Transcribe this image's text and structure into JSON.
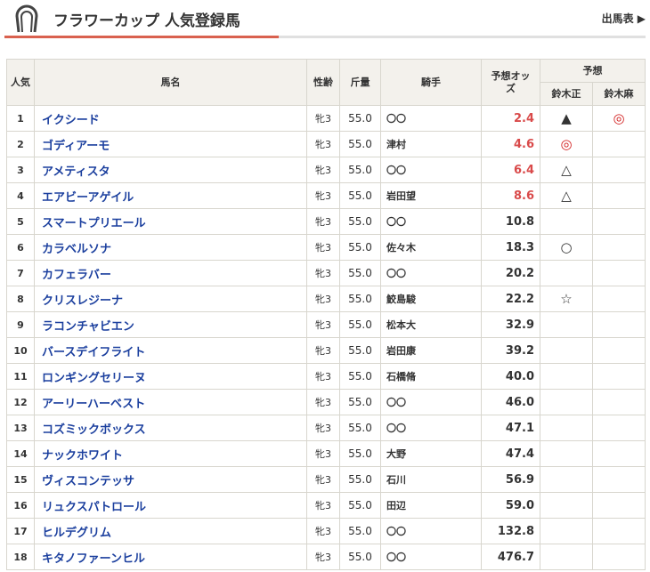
{
  "header": {
    "title": "フラワーカップ 人気登録馬",
    "link": "出馬表 ▶",
    "accent": "#d9614f"
  },
  "table": {
    "columns": {
      "rank": "人気",
      "name": "馬名",
      "sex_age": "性齢",
      "weight": "斤量",
      "jockey": "騎手",
      "odds": "予想オッズ",
      "forecast": "予想",
      "forecaster1": "鈴木正",
      "forecaster2": "鈴木麻"
    },
    "rows": [
      {
        "rank": "1",
        "name": "イクシード",
        "sex": "牝3",
        "wt": "55.0",
        "jockey": "〇〇",
        "odds": "2.4",
        "hot": true,
        "m1": "▲",
        "m2": "◎"
      },
      {
        "rank": "2",
        "name": "ゴディアーモ",
        "sex": "牝3",
        "wt": "55.0",
        "jockey": "津村",
        "odds": "4.6",
        "hot": true,
        "m1": "◎",
        "m2": ""
      },
      {
        "rank": "3",
        "name": "アメティスタ",
        "sex": "牝3",
        "wt": "55.0",
        "jockey": "〇〇",
        "odds": "6.4",
        "hot": true,
        "m1": "△",
        "m2": ""
      },
      {
        "rank": "4",
        "name": "エアビーアゲイル",
        "sex": "牝3",
        "wt": "55.0",
        "jockey": "岩田望",
        "odds": "8.6",
        "hot": true,
        "m1": "△",
        "m2": ""
      },
      {
        "rank": "5",
        "name": "スマートプリエール",
        "sex": "牝3",
        "wt": "55.0",
        "jockey": "〇〇",
        "odds": "10.8",
        "hot": false,
        "m1": "",
        "m2": ""
      },
      {
        "rank": "6",
        "name": "カラベルソナ",
        "sex": "牝3",
        "wt": "55.0",
        "jockey": "佐々木",
        "odds": "18.3",
        "hot": false,
        "m1": "○",
        "m2": ""
      },
      {
        "rank": "7",
        "name": "カフェラバー",
        "sex": "牝3",
        "wt": "55.0",
        "jockey": "〇〇",
        "odds": "20.2",
        "hot": false,
        "m1": "",
        "m2": ""
      },
      {
        "rank": "8",
        "name": "クリスレジーナ",
        "sex": "牝3",
        "wt": "55.0",
        "jockey": "鮫島駿",
        "odds": "22.2",
        "hot": false,
        "m1": "☆",
        "m2": ""
      },
      {
        "rank": "9",
        "name": "ラコンチャビエン",
        "sex": "牝3",
        "wt": "55.0",
        "jockey": "松本大",
        "odds": "32.9",
        "hot": false,
        "m1": "",
        "m2": ""
      },
      {
        "rank": "10",
        "name": "バースデイフライト",
        "sex": "牝3",
        "wt": "55.0",
        "jockey": "岩田康",
        "odds": "39.2",
        "hot": false,
        "m1": "",
        "m2": ""
      },
      {
        "rank": "11",
        "name": "ロンギングセリーヌ",
        "sex": "牝3",
        "wt": "55.0",
        "jockey": "石橋脩",
        "odds": "40.0",
        "hot": false,
        "m1": "",
        "m2": ""
      },
      {
        "rank": "12",
        "name": "アーリーハーベスト",
        "sex": "牝3",
        "wt": "55.0",
        "jockey": "〇〇",
        "odds": "46.0",
        "hot": false,
        "m1": "",
        "m2": ""
      },
      {
        "rank": "13",
        "name": "コズミックボックス",
        "sex": "牝3",
        "wt": "55.0",
        "jockey": "〇〇",
        "odds": "47.1",
        "hot": false,
        "m1": "",
        "m2": ""
      },
      {
        "rank": "14",
        "name": "ナックホワイト",
        "sex": "牝3",
        "wt": "55.0",
        "jockey": "大野",
        "odds": "47.4",
        "hot": false,
        "m1": "",
        "m2": ""
      },
      {
        "rank": "15",
        "name": "ヴィスコンテッサ",
        "sex": "牝3",
        "wt": "55.0",
        "jockey": "石川",
        "odds": "56.9",
        "hot": false,
        "m1": "",
        "m2": ""
      },
      {
        "rank": "16",
        "name": "リュクスパトロール",
        "sex": "牝3",
        "wt": "55.0",
        "jockey": "田辺",
        "odds": "59.0",
        "hot": false,
        "m1": "",
        "m2": ""
      },
      {
        "rank": "17",
        "name": "ヒルデグリム",
        "sex": "牝3",
        "wt": "55.0",
        "jockey": "〇〇",
        "odds": "132.8",
        "hot": false,
        "m1": "",
        "m2": ""
      },
      {
        "rank": "18",
        "name": "キタノファーンヒル",
        "sex": "牝3",
        "wt": "55.0",
        "jockey": "〇〇",
        "odds": "476.7",
        "hot": false,
        "m1": "",
        "m2": ""
      }
    ]
  }
}
